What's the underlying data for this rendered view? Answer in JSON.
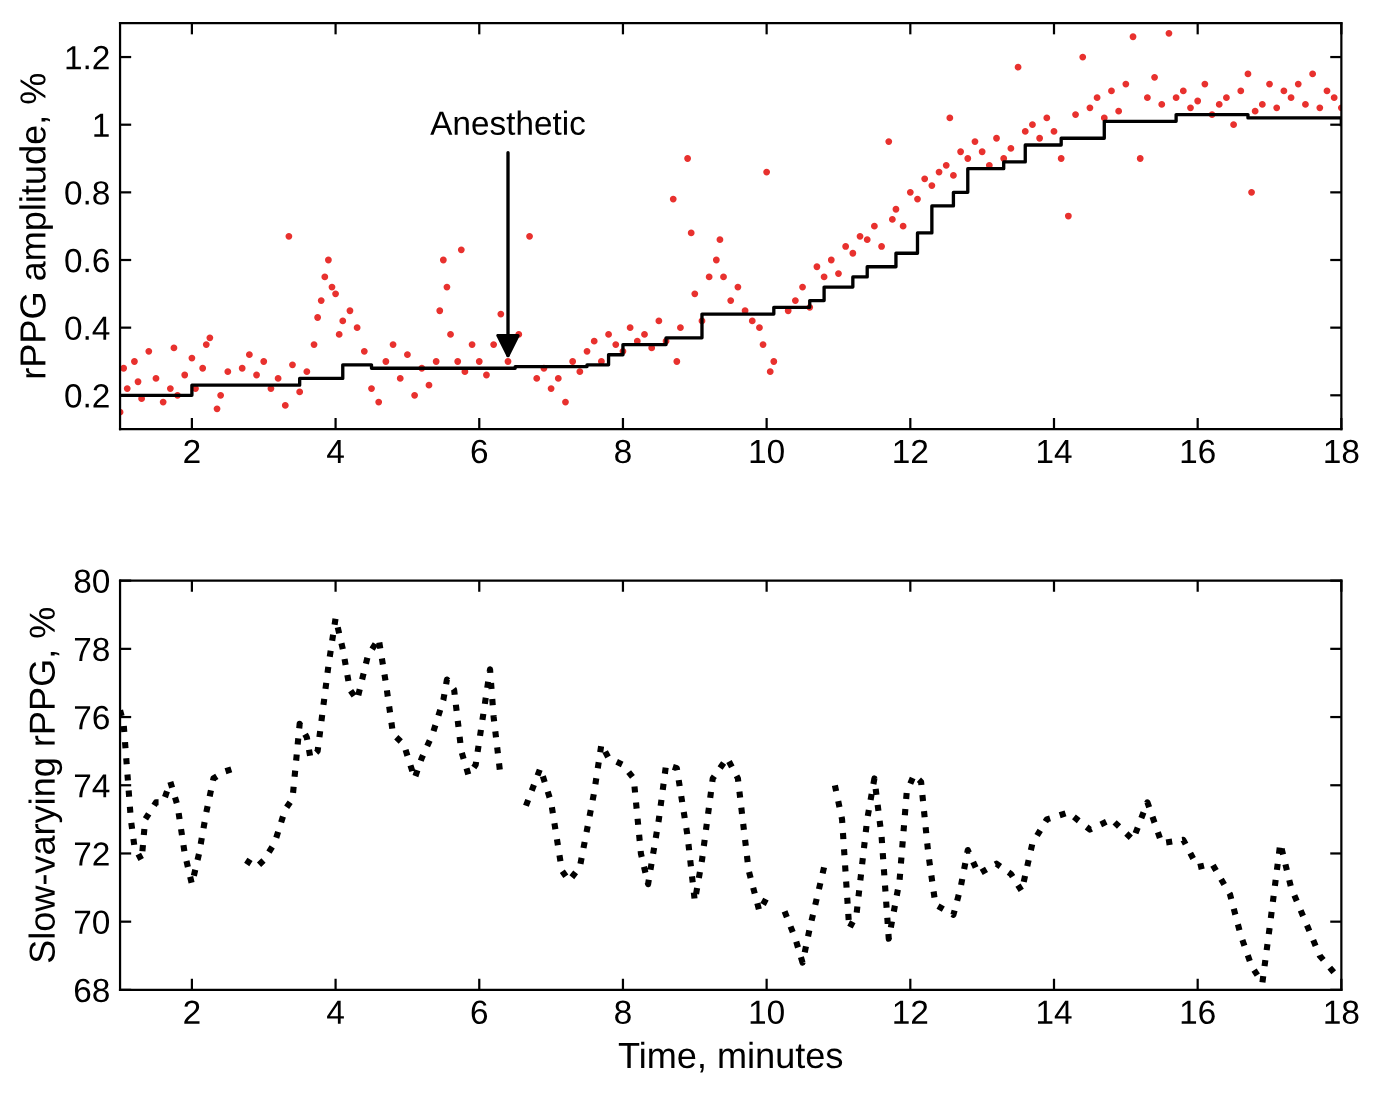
{
  "chart_data": [
    {
      "type": "scatter",
      "ylabel": "rPPG amplitude, %",
      "xlim": [
        1,
        18
      ],
      "ylim": [
        0.1,
        1.3
      ],
      "xticks": [
        2,
        4,
        6,
        8,
        10,
        12,
        14,
        16,
        18
      ],
      "yticks": [
        0.2,
        0.4,
        0.6,
        0.8,
        1,
        1.2
      ],
      "grid": false,
      "legend": false,
      "annotations": [
        {
          "text": "Anesthetic",
          "x": 6.4,
          "y": 0.29
        }
      ],
      "series": [
        {
          "color": "#e8312e",
          "marker": "circle",
          "x": [
            1.0,
            1.05,
            1.1,
            1.2,
            1.25,
            1.3,
            1.4,
            1.5,
            1.6,
            1.7,
            1.75,
            1.8,
            1.9,
            2.0,
            2.05,
            2.15,
            2.2,
            2.25,
            2.35,
            2.4,
            2.5,
            2.7,
            2.8,
            2.9,
            3.0,
            3.1,
            3.2,
            3.3,
            3.35,
            3.4,
            3.5,
            3.6,
            3.7,
            3.75,
            3.8,
            3.85,
            3.9,
            3.95,
            4.0,
            4.05,
            4.1,
            4.2,
            4.3,
            4.4,
            4.5,
            4.6,
            4.7,
            4.8,
            4.9,
            5.0,
            5.1,
            5.2,
            5.3,
            5.4,
            5.45,
            5.5,
            5.55,
            5.6,
            5.7,
            5.75,
            5.8,
            5.9,
            6.0,
            6.1,
            6.2,
            6.3,
            6.4,
            6.55,
            6.7,
            6.8,
            6.9,
            7.0,
            7.1,
            7.2,
            7.3,
            7.4,
            7.5,
            7.6,
            7.7,
            7.8,
            7.9,
            8.0,
            8.1,
            8.2,
            8.3,
            8.4,
            8.5,
            8.6,
            8.7,
            8.75,
            8.8,
            8.9,
            8.95,
            9.0,
            9.1,
            9.2,
            9.3,
            9.35,
            9.4,
            9.5,
            9.6,
            9.7,
            9.8,
            9.9,
            9.95,
            10.0,
            10.05,
            10.1,
            10.3,
            10.4,
            10.5,
            10.6,
            10.7,
            10.8,
            10.9,
            11.0,
            11.1,
            11.2,
            11.3,
            11.4,
            11.5,
            11.6,
            11.7,
            11.75,
            11.8,
            11.9,
            12.0,
            12.1,
            12.2,
            12.3,
            12.4,
            12.5,
            12.55,
            12.6,
            12.7,
            12.8,
            12.9,
            13.0,
            13.1,
            13.2,
            13.3,
            13.4,
            13.5,
            13.6,
            13.7,
            13.8,
            13.9,
            14.0,
            14.1,
            14.2,
            14.3,
            14.4,
            14.5,
            14.6,
            14.7,
            14.8,
            14.9,
            15.0,
            15.1,
            15.2,
            15.3,
            15.4,
            15.5,
            15.6,
            15.7,
            15.8,
            15.9,
            16.0,
            16.1,
            16.2,
            16.3,
            16.4,
            16.5,
            16.6,
            16.7,
            16.75,
            16.8,
            16.9,
            17.0,
            17.1,
            17.2,
            17.3,
            17.4,
            17.5,
            17.6,
            17.7,
            17.8,
            17.9,
            18.0
          ],
          "values": [
            0.15,
            0.28,
            0.22,
            0.3,
            0.24,
            0.19,
            0.33,
            0.25,
            0.18,
            0.22,
            0.34,
            0.2,
            0.26,
            0.31,
            0.22,
            0.28,
            0.35,
            0.37,
            0.16,
            0.2,
            0.27,
            0.28,
            0.32,
            0.26,
            0.3,
            0.22,
            0.25,
            0.17,
            0.67,
            0.29,
            0.21,
            0.27,
            0.35,
            0.43,
            0.48,
            0.55,
            0.6,
            0.52,
            0.5,
            0.38,
            0.42,
            0.45,
            0.4,
            0.33,
            0.22,
            0.18,
            0.3,
            0.35,
            0.25,
            0.32,
            0.2,
            0.28,
            0.23,
            0.3,
            0.45,
            0.6,
            0.52,
            0.38,
            0.3,
            0.63,
            0.27,
            0.35,
            0.3,
            0.26,
            0.35,
            0.44,
            0.3,
            0.38,
            0.67,
            0.25,
            0.28,
            0.22,
            0.25,
            0.18,
            0.3,
            0.27,
            0.33,
            0.36,
            0.3,
            0.38,
            0.35,
            0.33,
            0.4,
            0.36,
            0.38,
            0.34,
            0.42,
            0.36,
            0.78,
            0.3,
            0.4,
            0.9,
            0.68,
            0.5,
            0.42,
            0.55,
            0.6,
            0.66,
            0.55,
            0.48,
            0.52,
            0.45,
            0.42,
            0.4,
            0.35,
            0.86,
            0.27,
            0.3,
            0.45,
            0.48,
            0.52,
            0.46,
            0.58,
            0.55,
            0.6,
            0.56,
            0.64,
            0.62,
            0.67,
            0.66,
            0.7,
            0.64,
            0.95,
            0.72,
            0.75,
            0.7,
            0.8,
            0.78,
            0.84,
            0.82,
            0.86,
            0.88,
            1.02,
            0.85,
            0.92,
            0.9,
            0.95,
            0.92,
            0.88,
            0.96,
            0.9,
            0.93,
            1.17,
            0.98,
            1.0,
            0.96,
            1.02,
            0.98,
            0.9,
            0.73,
            1.03,
            1.2,
            1.05,
            1.08,
            1.02,
            1.1,
            1.04,
            1.12,
            1.26,
            0.9,
            1.08,
            1.14,
            1.06,
            1.27,
            1.08,
            1.1,
            1.05,
            1.07,
            1.12,
            1.03,
            1.06,
            1.08,
            1.0,
            1.1,
            1.15,
            0.8,
            1.04,
            1.06,
            1.12,
            1.05,
            1.1,
            1.08,
            1.12,
            1.06,
            1.15,
            1.05,
            1.1,
            1.08,
            1.05
          ]
        },
        {
          "type": "step",
          "color": "#000000",
          "x": [
            1,
            2,
            3.5,
            4.1,
            4.5,
            6.5,
            7.5,
            7.8,
            8.0,
            8.6,
            9.1,
            10.1,
            10.6,
            10.8,
            11.2,
            11.4,
            11.8,
            12.1,
            12.3,
            12.6,
            12.8,
            13.3,
            13.6,
            14.1,
            14.7,
            15.7,
            16.7,
            18
          ],
          "values": [
            0.2,
            0.23,
            0.25,
            0.29,
            0.28,
            0.285,
            0.29,
            0.32,
            0.35,
            0.37,
            0.44,
            0.46,
            0.48,
            0.52,
            0.55,
            0.58,
            0.62,
            0.68,
            0.76,
            0.8,
            0.87,
            0.89,
            0.94,
            0.96,
            1.01,
            1.03,
            1.02,
            1.0
          ]
        }
      ]
    },
    {
      "type": "line",
      "xlabel": "Time, minutes",
      "ylabel": "Slow-varying rPPG, %",
      "xlim": [
        1,
        18
      ],
      "ylim": [
        68,
        80
      ],
      "xticks": [
        2,
        4,
        6,
        8,
        10,
        12,
        14,
        16,
        18
      ],
      "yticks": [
        68,
        70,
        72,
        74,
        76,
        78,
        80
      ],
      "grid": false,
      "legend": false,
      "series": [
        {
          "color": "#000000",
          "line_style": "dotted",
          "x": [
            1.0,
            1.05,
            1.15,
            1.2,
            1.3,
            1.35,
            1.5,
            1.6,
            1.7,
            1.8,
            1.9,
            2.0,
            2.1,
            2.2,
            2.3,
            2.45,
            2.6,
            2.7,
            2.75,
            2.9,
            3.0,
            3.15,
            3.3,
            3.4,
            3.5,
            3.6,
            3.65,
            3.75,
            3.9,
            4.0,
            4.1,
            4.2,
            4.3,
            4.45,
            4.6,
            4.7,
            4.8,
            4.95,
            5.1,
            5.2,
            5.35,
            5.5,
            5.55,
            5.65,
            5.75,
            5.85,
            5.95,
            6.05,
            6.15,
            6.2,
            6.3,
            6.45,
            6.65,
            6.85,
            7.0,
            7.15,
            7.25,
            7.4,
            7.6,
            7.7,
            7.8,
            8.0,
            8.15,
            8.25,
            8.35,
            8.5,
            8.6,
            8.75,
            8.9,
            9.0,
            9.1,
            9.25,
            9.45,
            9.6,
            9.75,
            9.9,
            10.05,
            10.15,
            10.25,
            10.4,
            10.5,
            10.6,
            10.8,
            10.87,
            10.95,
            11.05,
            11.15,
            11.25,
            11.4,
            11.5,
            11.6,
            11.7,
            11.85,
            11.95,
            12.05,
            12.15,
            12.25,
            12.35,
            12.6,
            12.7,
            12.8,
            12.95,
            13.2,
            13.4,
            13.55,
            13.7,
            13.9,
            14.2,
            14.5,
            14.8,
            15.1,
            15.3,
            15.5,
            15.8,
            16.0,
            16.2,
            16.45,
            16.6,
            16.75,
            16.9,
            17.0,
            17.15,
            17.3,
            17.5,
            17.7,
            17.9,
            18.0
          ],
          "values": [
            76.2,
            75.8,
            73.0,
            72.2,
            71.8,
            73.0,
            73.5,
            73.5,
            74.1,
            73.4,
            72.0,
            71.1,
            72.0,
            73.2,
            74.2,
            74.4,
            74.5,
            null,
            71.8,
            71.6,
            71.8,
            72.3,
            73.3,
            73.6,
            75.8,
            75.4,
            74.8,
            75.0,
            77.5,
            78.9,
            78.0,
            76.8,
            76.5,
            77.8,
            78.3,
            77.0,
            75.5,
            75.2,
            74.2,
            74.8,
            75.5,
            76.5,
            77.1,
            76.8,
            75.0,
            74.3,
            74.6,
            76.0,
            77.4,
            76.0,
            74.2,
            null,
            73.4,
            74.5,
            73.5,
            71.5,
            71.2,
            71.6,
            73.8,
            75.2,
            74.8,
            74.6,
            74.2,
            72.0,
            71.1,
            73.0,
            74.6,
            74.5,
            72.5,
            70.6,
            71.8,
            74.2,
            74.8,
            74.2,
            71.5,
            70.3,
            70.9,
            null,
            70.3,
            69.5,
            68.8,
            69.8,
            71.6,
            null,
            74.0,
            73.0,
            69.8,
            70.2,
            73.0,
            74.2,
            72.5,
            69.5,
            71.2,
            73.8,
            74.3,
            74.1,
            72.0,
            70.5,
            70.2,
            71.0,
            72.1,
            71.4,
            71.7,
            71.4,
            70.9,
            72.3,
            73.0,
            73.2,
            72.7,
            73.0,
            72.4,
            73.5,
            72.3,
            72.4,
            71.6,
            71.7,
            70.8,
            69.6,
            68.7,
            68.2,
            69.8,
            72.3,
            71.0,
            70.0,
            69.0,
            68.5,
            68.5
          ]
        }
      ]
    }
  ]
}
